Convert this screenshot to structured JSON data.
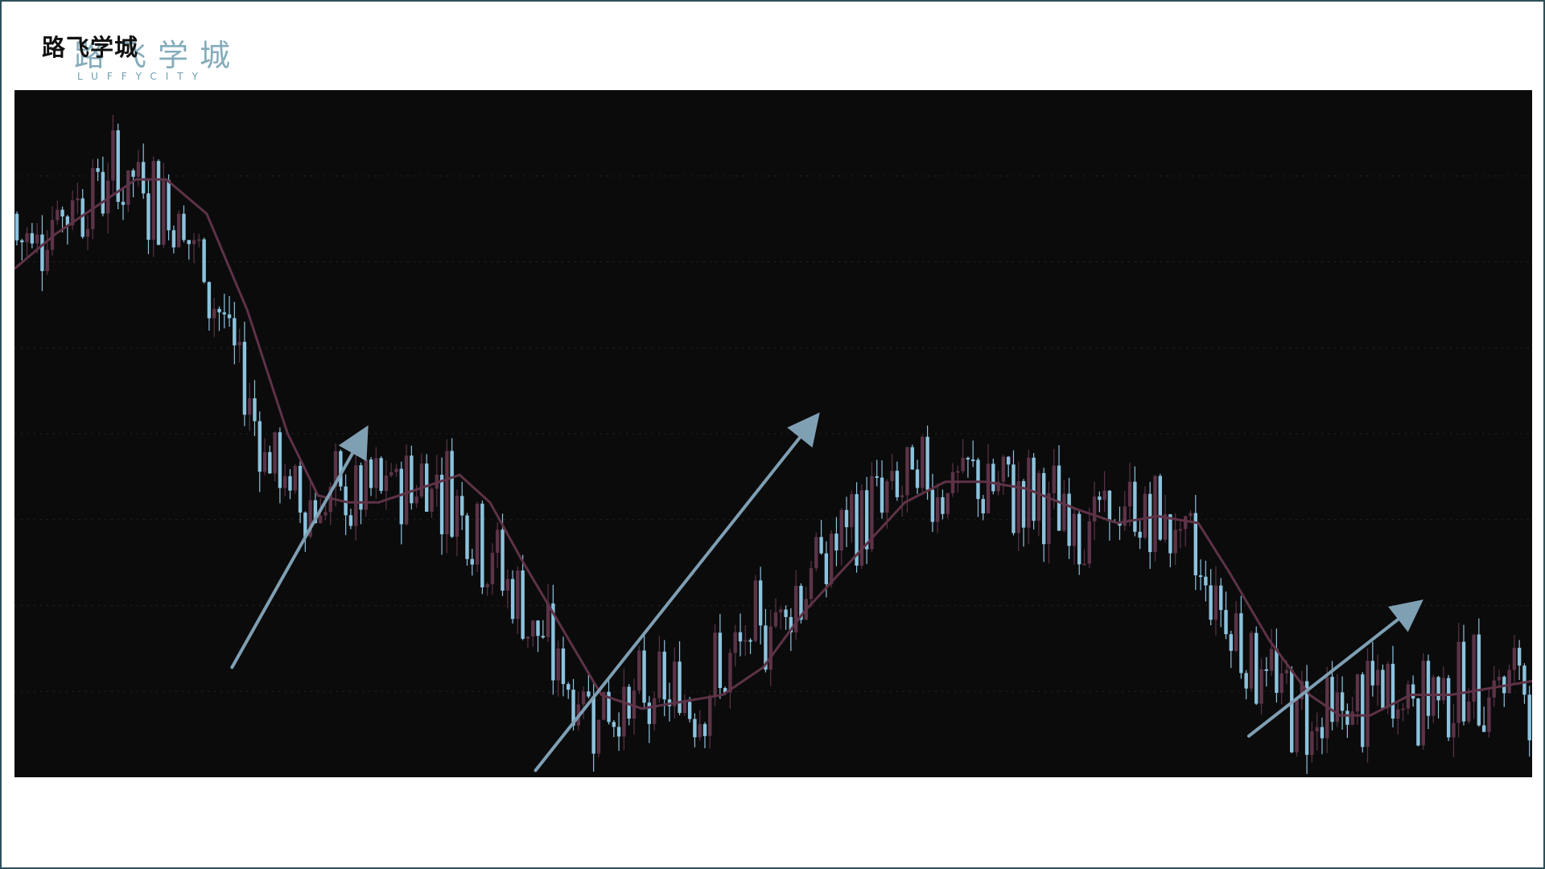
{
  "logo": {
    "cn_mark": "路飞学城",
    "cn_watermark": "路飞学城",
    "en": "LUFFYCITY"
  },
  "colors": {
    "background": "#0b0b0c",
    "up_candle": "#5c3347",
    "down_candle": "#8cc3dd",
    "moving_average": "#5e3246",
    "trend_arrow": "#7f9fb3",
    "grid": "#262626"
  },
  "chart_data": {
    "type": "candlestick",
    "title": "",
    "xlabel": "",
    "ylabel": "",
    "xlim": [
      0,
      300
    ],
    "ylim": [
      0,
      100
    ],
    "grid": true,
    "ma_curve": [
      [
        0,
        74
      ],
      [
        8,
        79
      ],
      [
        18,
        84
      ],
      [
        24,
        87
      ],
      [
        30,
        87
      ],
      [
        38,
        82
      ],
      [
        46,
        68
      ],
      [
        54,
        50
      ],
      [
        60,
        41
      ],
      [
        66,
        40
      ],
      [
        72,
        40
      ],
      [
        80,
        42
      ],
      [
        88,
        44
      ],
      [
        94,
        40
      ],
      [
        100,
        32
      ],
      [
        108,
        22
      ],
      [
        116,
        12
      ],
      [
        124,
        10
      ],
      [
        132,
        11
      ],
      [
        140,
        12
      ],
      [
        148,
        16
      ],
      [
        156,
        24
      ],
      [
        166,
        32
      ],
      [
        176,
        40
      ],
      [
        184,
        43
      ],
      [
        192,
        43
      ],
      [
        200,
        42
      ],
      [
        210,
        39
      ],
      [
        218,
        37
      ],
      [
        226,
        38
      ],
      [
        234,
        37
      ],
      [
        240,
        30
      ],
      [
        248,
        20
      ],
      [
        256,
        12
      ],
      [
        262,
        9
      ],
      [
        268,
        9
      ],
      [
        276,
        12
      ],
      [
        284,
        12
      ],
      [
        292,
        13
      ],
      [
        300,
        14
      ]
    ],
    "trend_arrows": [
      {
        "from": [
          43,
          16
        ],
        "to": [
          69,
          50
        ]
      },
      {
        "from": [
          103,
          1
        ],
        "to": [
          158,
          52
        ]
      },
      {
        "from": [
          244,
          6
        ],
        "to": [
          277,
          25
        ]
      }
    ]
  }
}
